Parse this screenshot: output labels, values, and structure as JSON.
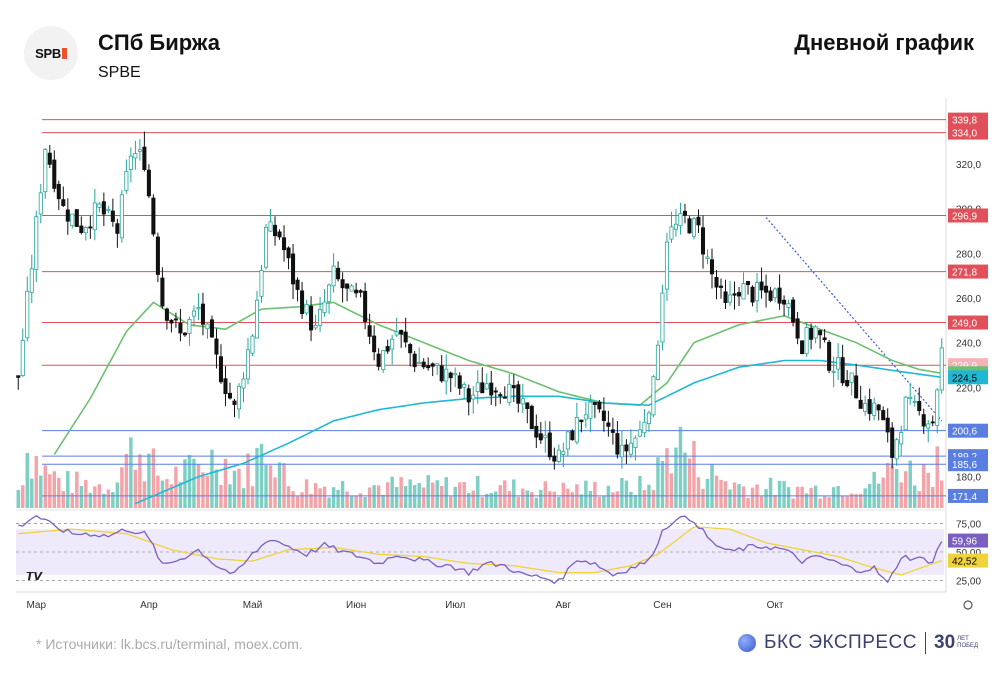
{
  "header": {
    "company": "СПб Биржа",
    "ticker": "SPBE",
    "chart_title": "Дневной график",
    "logo_text": "SPB"
  },
  "footer": {
    "source": "*  Источники: lk.bcs.ru/terminal, moex.com.",
    "brand_name": "БКС ЭКСПРЕСС",
    "brand_years": "30",
    "brand_small_1": "ЛЕТ",
    "brand_small_2": "ПОБЕД"
  },
  "colors": {
    "up": "#26a69a",
    "down": "#111111",
    "vol_up": "#7dcfc3",
    "vol_down": "#f4a3a8",
    "ma_green": "#6cc070",
    "ma_blue": "#1fb8d4",
    "resistance": "#e0505a",
    "support": "#5a7ee0",
    "rsi": "#7b5fc0",
    "rsi_ma": "#f0d23a"
  },
  "chart_data": {
    "type": "candlestick",
    "y_ticks": [
      "320,0",
      "300,0",
      "280,0",
      "260,0",
      "240,0",
      "220,0",
      "200,0",
      "180,0"
    ],
    "x_labels": [
      "Мар",
      "Апр",
      "Май",
      "Июн",
      "Июл",
      "Авг",
      "Сен",
      "Окт"
    ],
    "ylim": [
      166,
      345
    ],
    "resistance_levels": [
      {
        "value": 339.8,
        "label": "339,8"
      },
      {
        "value": 334.0,
        "label": "334,0"
      },
      {
        "value": 296.9,
        "label": "296,9"
      },
      {
        "value": 271.8,
        "label": "271,8"
      },
      {
        "value": 249.0,
        "label": "249,0"
      },
      {
        "value": 229.9,
        "label": "229,9"
      }
    ],
    "support_levels": [
      {
        "value": 200.6,
        "label": "200,6"
      },
      {
        "value": 189.2,
        "label": "189,2"
      },
      {
        "value": 185.6,
        "label": "185,6"
      },
      {
        "value": 171.4,
        "label": "171,4"
      }
    ],
    "ma_labels": [
      {
        "value": 226.3,
        "label": "226,3"
      },
      {
        "value": 224.5,
        "label": "224,5"
      }
    ],
    "rsi": {
      "ticks": [
        "75,00",
        "50,00",
        "25,00"
      ],
      "last_rsi": "59,96",
      "last_ma": "42,52",
      "ylim": [
        15,
        85
      ]
    },
    "close_anchors": [
      [
        0,
        225
      ],
      [
        3,
        275
      ],
      [
        6,
        328
      ],
      [
        10,
        300
      ],
      [
        14,
        292
      ],
      [
        18,
        300
      ],
      [
        22,
        290
      ],
      [
        25,
        325
      ],
      [
        28,
        322
      ],
      [
        32,
        258
      ],
      [
        36,
        243
      ],
      [
        40,
        255
      ],
      [
        44,
        232
      ],
      [
        48,
        210
      ],
      [
        52,
        245
      ],
      [
        55,
        290
      ],
      [
        58,
        288
      ],
      [
        62,
        262
      ],
      [
        66,
        245
      ],
      [
        70,
        270
      ],
      [
        73,
        262
      ],
      [
        76,
        258
      ],
      [
        80,
        232
      ],
      [
        84,
        245
      ],
      [
        88,
        232
      ],
      [
        92,
        228
      ],
      [
        96,
        225
      ],
      [
        100,
        215
      ],
      [
        104,
        222
      ],
      [
        108,
        220
      ],
      [
        112,
        210
      ],
      [
        116,
        198
      ],
      [
        120,
        188
      ],
      [
        123,
        200
      ],
      [
        126,
        210
      ],
      [
        130,
        205
      ],
      [
        134,
        190
      ],
      [
        138,
        200
      ],
      [
        141,
        220
      ],
      [
        144,
        288
      ],
      [
        148,
        295
      ],
      [
        151,
        290
      ],
      [
        154,
        270
      ],
      [
        157,
        255
      ],
      [
        160,
        265
      ],
      [
        163,
        262
      ],
      [
        166,
        262
      ],
      [
        170,
        262
      ],
      [
        174,
        240
      ],
      [
        177,
        246
      ],
      [
        180,
        232
      ],
      [
        184,
        225
      ],
      [
        188,
        212
      ],
      [
        191,
        210
      ],
      [
        194,
        190
      ],
      [
        197,
        212
      ],
      [
        200,
        208
      ],
      [
        203,
        205
      ],
      [
        205,
        236
      ]
    ],
    "ma_green_anchors": [
      [
        8,
        190
      ],
      [
        16,
        215
      ],
      [
        24,
        245
      ],
      [
        30,
        258
      ],
      [
        38,
        248
      ],
      [
        46,
        246
      ],
      [
        54,
        255
      ],
      [
        62,
        256
      ],
      [
        70,
        258
      ],
      [
        80,
        248
      ],
      [
        90,
        240
      ],
      [
        100,
        232
      ],
      [
        110,
        226
      ],
      [
        120,
        218
      ],
      [
        130,
        213
      ],
      [
        138,
        212
      ],
      [
        144,
        222
      ],
      [
        150,
        240
      ],
      [
        160,
        248
      ],
      [
        170,
        252
      ],
      [
        178,
        246
      ],
      [
        186,
        240
      ],
      [
        194,
        232
      ],
      [
        200,
        228
      ],
      [
        205,
        226.3
      ]
    ],
    "ma_blue_anchors": [
      [
        26,
        168
      ],
      [
        40,
        180
      ],
      [
        50,
        186
      ],
      [
        60,
        195
      ],
      [
        70,
        205
      ],
      [
        80,
        210
      ],
      [
        90,
        213
      ],
      [
        100,
        215
      ],
      [
        110,
        216
      ],
      [
        120,
        216
      ],
      [
        130,
        213
      ],
      [
        140,
        212
      ],
      [
        150,
        222
      ],
      [
        160,
        229
      ],
      [
        170,
        232
      ],
      [
        178,
        232
      ],
      [
        186,
        230
      ],
      [
        196,
        227
      ],
      [
        205,
        224.5
      ]
    ],
    "rsi_anchors": [
      [
        0,
        72
      ],
      [
        4,
        82
      ],
      [
        8,
        72
      ],
      [
        12,
        66
      ],
      [
        16,
        66
      ],
      [
        20,
        64
      ],
      [
        24,
        70
      ],
      [
        28,
        66
      ],
      [
        30,
        55
      ],
      [
        32,
        38
      ],
      [
        36,
        44
      ],
      [
        40,
        52
      ],
      [
        44,
        38
      ],
      [
        48,
        30
      ],
      [
        52,
        48
      ],
      [
        56,
        62
      ],
      [
        60,
        55
      ],
      [
        64,
        48
      ],
      [
        68,
        56
      ],
      [
        72,
        50
      ],
      [
        76,
        46
      ],
      [
        80,
        40
      ],
      [
        84,
        48
      ],
      [
        88,
        44
      ],
      [
        92,
        40
      ],
      [
        96,
        38
      ],
      [
        100,
        32
      ],
      [
        104,
        40
      ],
      [
        108,
        38
      ],
      [
        112,
        30
      ],
      [
        116,
        28
      ],
      [
        120,
        24
      ],
      [
        124,
        44
      ],
      [
        128,
        40
      ],
      [
        132,
        30
      ],
      [
        136,
        36
      ],
      [
        140,
        42
      ],
      [
        143,
        68
      ],
      [
        146,
        80
      ],
      [
        150,
        78
      ],
      [
        154,
        58
      ],
      [
        158,
        50
      ],
      [
        162,
        54
      ],
      [
        166,
        55
      ],
      [
        170,
        52
      ],
      [
        174,
        42
      ],
      [
        178,
        46
      ],
      [
        182,
        40
      ],
      [
        186,
        34
      ],
      [
        190,
        36
      ],
      [
        193,
        22
      ],
      [
        196,
        46
      ],
      [
        200,
        44
      ],
      [
        203,
        42
      ],
      [
        205,
        60
      ]
    ],
    "rsi_ma_anchors": [
      [
        0,
        66
      ],
      [
        12,
        70
      ],
      [
        24,
        66
      ],
      [
        34,
        52
      ],
      [
        44,
        44
      ],
      [
        52,
        42
      ],
      [
        60,
        52
      ],
      [
        70,
        54
      ],
      [
        80,
        48
      ],
      [
        90,
        46
      ],
      [
        100,
        40
      ],
      [
        110,
        38
      ],
      [
        120,
        32
      ],
      [
        128,
        32
      ],
      [
        136,
        38
      ],
      [
        142,
        48
      ],
      [
        150,
        72
      ],
      [
        158,
        70
      ],
      [
        166,
        58
      ],
      [
        174,
        52
      ],
      [
        182,
        46
      ],
      [
        190,
        36
      ],
      [
        196,
        30
      ],
      [
        205,
        42.5
      ]
    ],
    "volume_profile": [
      [
        0,
        0.25
      ],
      [
        2,
        0.8
      ],
      [
        6,
        0.5
      ],
      [
        10,
        0.35
      ],
      [
        20,
        0.3
      ],
      [
        26,
        0.85
      ],
      [
        32,
        0.4
      ],
      [
        38,
        0.5
      ],
      [
        44,
        0.7
      ],
      [
        50,
        0.45
      ],
      [
        56,
        0.9
      ],
      [
        60,
        0.3
      ],
      [
        80,
        0.3
      ],
      [
        100,
        0.3
      ],
      [
        120,
        0.25
      ],
      [
        140,
        0.3
      ],
      [
        146,
        0.95
      ],
      [
        152,
        0.5
      ],
      [
        160,
        0.3
      ],
      [
        176,
        0.25
      ],
      [
        190,
        0.35
      ],
      [
        196,
        0.6
      ],
      [
        200,
        0.4
      ],
      [
        205,
        0.75
      ]
    ],
    "candle_count": 206
  }
}
